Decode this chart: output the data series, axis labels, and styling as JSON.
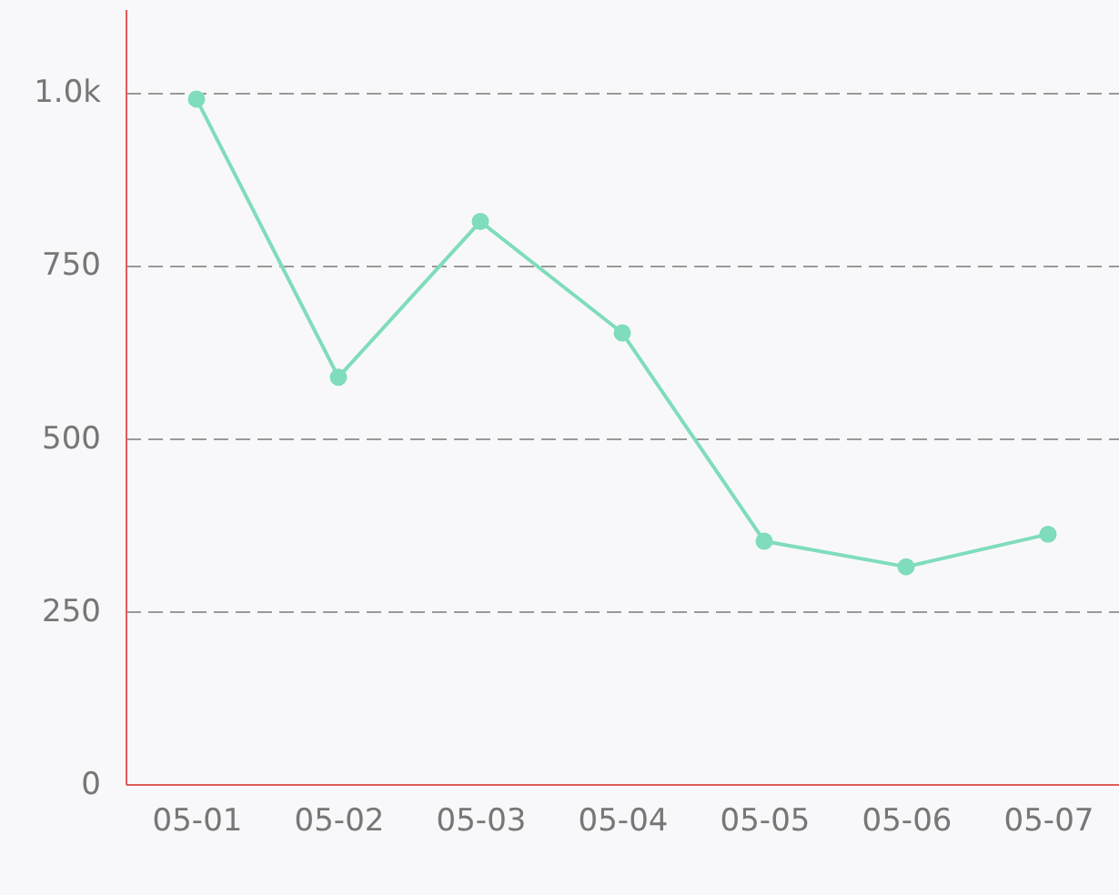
{
  "chart_data": {
    "type": "line",
    "categories": [
      "05-01",
      "05-02",
      "05-03",
      "05-04",
      "05-05",
      "05-06",
      "05-07"
    ],
    "series": [
      {
        "color": "#7fdcbc",
        "values": [
          990,
          588,
          813,
          652,
          351,
          314,
          361
        ]
      }
    ],
    "ylim": [
      0,
      1120
    ],
    "yticks": [
      0,
      250,
      500,
      750,
      {
        "value": 1000,
        "label": "1.0k"
      }
    ],
    "grid": "y",
    "marker": "circle",
    "line_style": "solid"
  }
}
